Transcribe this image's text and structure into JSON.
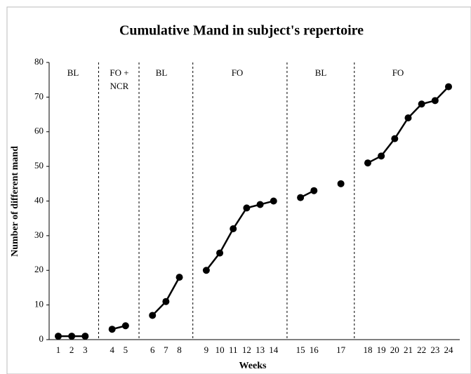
{
  "chart_data": {
    "type": "line",
    "title": "Cumulative Mand in subject's repertoire",
    "x_label": "Weeks",
    "y_label": "Number of different mand",
    "categories": [
      "1",
      "2",
      "3",
      null,
      "4",
      "5",
      null,
      "6",
      "7",
      "8",
      null,
      "9",
      "10",
      "11",
      "12",
      "13",
      "14",
      null,
      "15",
      "16",
      null,
      "17",
      null,
      "18",
      "19",
      "20",
      "21",
      "22",
      "23",
      "24"
    ],
    "series": [
      {
        "color": "#000000",
        "values": [
          1,
          1,
          1,
          null,
          3,
          4,
          null,
          7,
          11,
          18,
          null,
          20,
          25,
          32,
          38,
          39,
          40,
          null,
          41,
          43,
          null,
          45,
          null,
          51,
          53,
          58,
          64,
          68,
          69,
          73
        ]
      }
    ],
    "ylim": [
      0,
      80
    ],
    "yticks": [
      0,
      10,
      20,
      30,
      40,
      50,
      60,
      70,
      80
    ],
    "phases": [
      {
        "lines": [
          "BL"
        ]
      },
      {
        "lines": [
          "FO +",
          "NCR"
        ]
      },
      {
        "lines": [
          "BL"
        ]
      },
      {
        "lines": [
          "FO"
        ]
      },
      {
        "lines": [
          "BL"
        ]
      },
      {
        "lines": [
          "FO"
        ]
      }
    ]
  }
}
